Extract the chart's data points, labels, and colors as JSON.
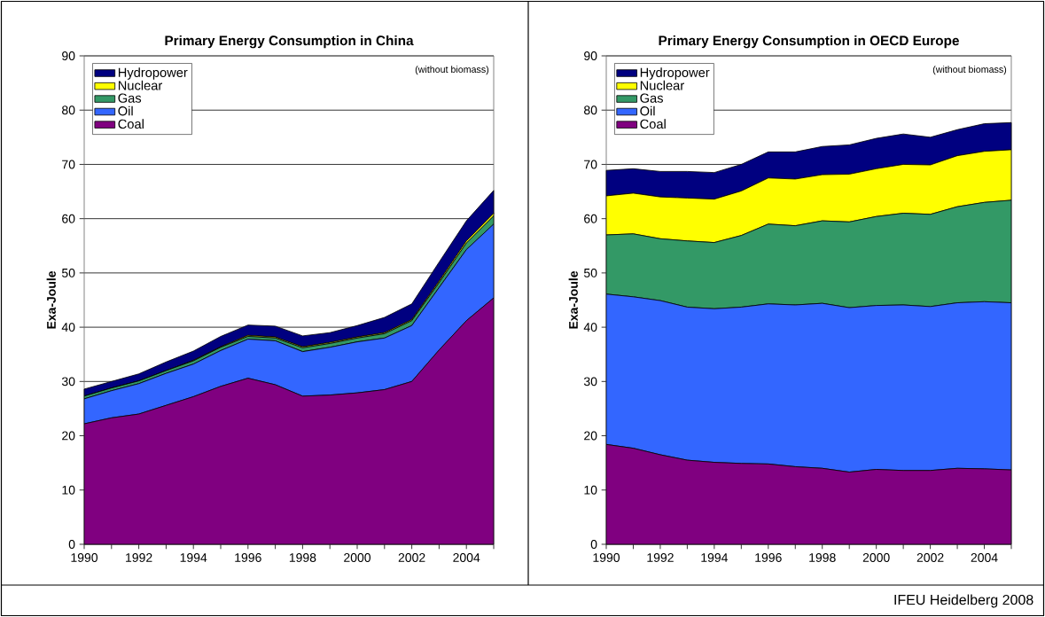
{
  "chart_data": [
    {
      "type": "area",
      "title": "Primary Energy Consumption in China",
      "ylabel": "Exa-Joule",
      "stacked": true,
      "grid": "y",
      "legend": "top left",
      "x": [
        1990,
        1991,
        1992,
        1993,
        1994,
        1995,
        1996,
        1997,
        1998,
        1999,
        2000,
        2001,
        2002,
        2003,
        2004,
        2005
      ],
      "xlim": [
        1990,
        2005
      ],
      "ylim": [
        0,
        90
      ],
      "xticks": [
        1990,
        {
          "value": 1991,
          "label": null
        },
        1992,
        {
          "value": 1993,
          "label": null
        },
        1994,
        {
          "value": 1995,
          "label": null
        },
        1996,
        {
          "value": 1997,
          "label": null
        },
        1998,
        {
          "value": 1999,
          "label": null
        },
        2000,
        {
          "value": 2001,
          "label": null
        },
        2002,
        {
          "value": 2003,
          "label": null
        },
        2004,
        {
          "value": 2005,
          "label": null
        }
      ],
      "yticks": [
        0,
        10,
        20,
        30,
        40,
        50,
        60,
        70,
        80,
        90
      ],
      "series": [
        {
          "name": "Coal",
          "color": "#800080",
          "values": [
            22.2,
            23.3,
            24.0,
            25.6,
            27.2,
            29.1,
            30.6,
            29.4,
            27.3,
            27.5,
            27.9,
            28.5,
            30.0,
            35.8,
            41.2,
            45.4
          ]
        },
        {
          "name": "Oil",
          "color": "#3366ff",
          "values": [
            4.6,
            5.0,
            5.6,
            5.9,
            6.0,
            6.6,
            7.2,
            8.1,
            8.2,
            8.8,
            9.4,
            9.5,
            10.3,
            11.5,
            13.1,
            13.6
          ]
        },
        {
          "name": "Gas",
          "color": "#339966",
          "values": [
            0.5,
            0.5,
            0.5,
            0.5,
            0.6,
            0.6,
            0.5,
            0.5,
            0.7,
            0.7,
            0.7,
            0.8,
            0.9,
            0.9,
            1.2,
            1.5
          ]
        },
        {
          "name": "Nuclear",
          "color": "#ffff00",
          "values": [
            0,
            0,
            0,
            0,
            0.1,
            0.1,
            0.2,
            0.2,
            0.2,
            0.2,
            0.2,
            0.2,
            0.2,
            0.3,
            0.4,
            0.5
          ]
        },
        {
          "name": "Hydropower",
          "color": "#000080",
          "values": [
            1.3,
            1.2,
            1.3,
            1.6,
            1.7,
            1.9,
            1.9,
            2.0,
            2.0,
            1.8,
            2.1,
            2.8,
            2.9,
            3.5,
            3.7,
            4.2
          ]
        }
      ],
      "annotations": [
        "(without biomass)"
      ]
    },
    {
      "type": "area",
      "title": "Primary Energy Consumption in OECD Europe",
      "ylabel": "Exa-Joule",
      "stacked": true,
      "grid": "y",
      "legend": "top left",
      "x": [
        1990,
        1991,
        1992,
        1993,
        1994,
        1995,
        1996,
        1997,
        1998,
        1999,
        2000,
        2001,
        2002,
        2003,
        2004,
        2005
      ],
      "xlim": [
        1990,
        2005
      ],
      "ylim": [
        0,
        90
      ],
      "xticks": [
        1990,
        {
          "value": 1991,
          "label": null
        },
        1992,
        {
          "value": 1993,
          "label": null
        },
        1994,
        {
          "value": 1995,
          "label": null
        },
        1996,
        {
          "value": 1997,
          "label": null
        },
        1998,
        {
          "value": 1999,
          "label": null
        },
        2000,
        {
          "value": 2001,
          "label": null
        },
        2002,
        {
          "value": 2003,
          "label": null
        },
        2004,
        {
          "value": 2005,
          "label": null
        }
      ],
      "yticks": [
        0,
        10,
        20,
        30,
        40,
        50,
        60,
        70,
        80,
        90
      ],
      "series": [
        {
          "name": "Coal",
          "color": "#800080",
          "values": [
            18.4,
            17.7,
            16.5,
            15.5,
            15.1,
            14.9,
            14.8,
            14.3,
            14.0,
            13.3,
            13.8,
            13.6,
            13.6,
            14.0,
            13.9,
            13.7
          ]
        },
        {
          "name": "Oil",
          "color": "#3366ff",
          "values": [
            27.7,
            27.9,
            28.4,
            28.2,
            28.3,
            28.8,
            29.5,
            29.8,
            30.4,
            30.3,
            30.2,
            30.5,
            30.2,
            30.5,
            30.8,
            30.8
          ]
        },
        {
          "name": "Gas",
          "color": "#339966",
          "values": [
            10.9,
            11.6,
            11.4,
            12.2,
            12.2,
            13.2,
            14.7,
            14.6,
            15.2,
            15.8,
            16.4,
            16.9,
            17.0,
            17.7,
            18.3,
            18.9
          ]
        },
        {
          "name": "Nuclear",
          "color": "#ffff00",
          "values": [
            7.2,
            7.5,
            7.7,
            7.9,
            8.0,
            8.2,
            8.5,
            8.6,
            8.5,
            8.8,
            8.8,
            9.0,
            9.1,
            9.4,
            9.4,
            9.3
          ]
        },
        {
          "name": "Hydropower",
          "color": "#000080",
          "values": [
            4.7,
            4.5,
            4.7,
            4.9,
            4.9,
            4.9,
            4.8,
            5.0,
            5.2,
            5.4,
            5.6,
            5.6,
            5.1,
            4.8,
            5.1,
            5.0
          ]
        }
      ],
      "annotations": [
        "(without biomass)",
        "IFEU Heidelberg 2008"
      ]
    }
  ]
}
